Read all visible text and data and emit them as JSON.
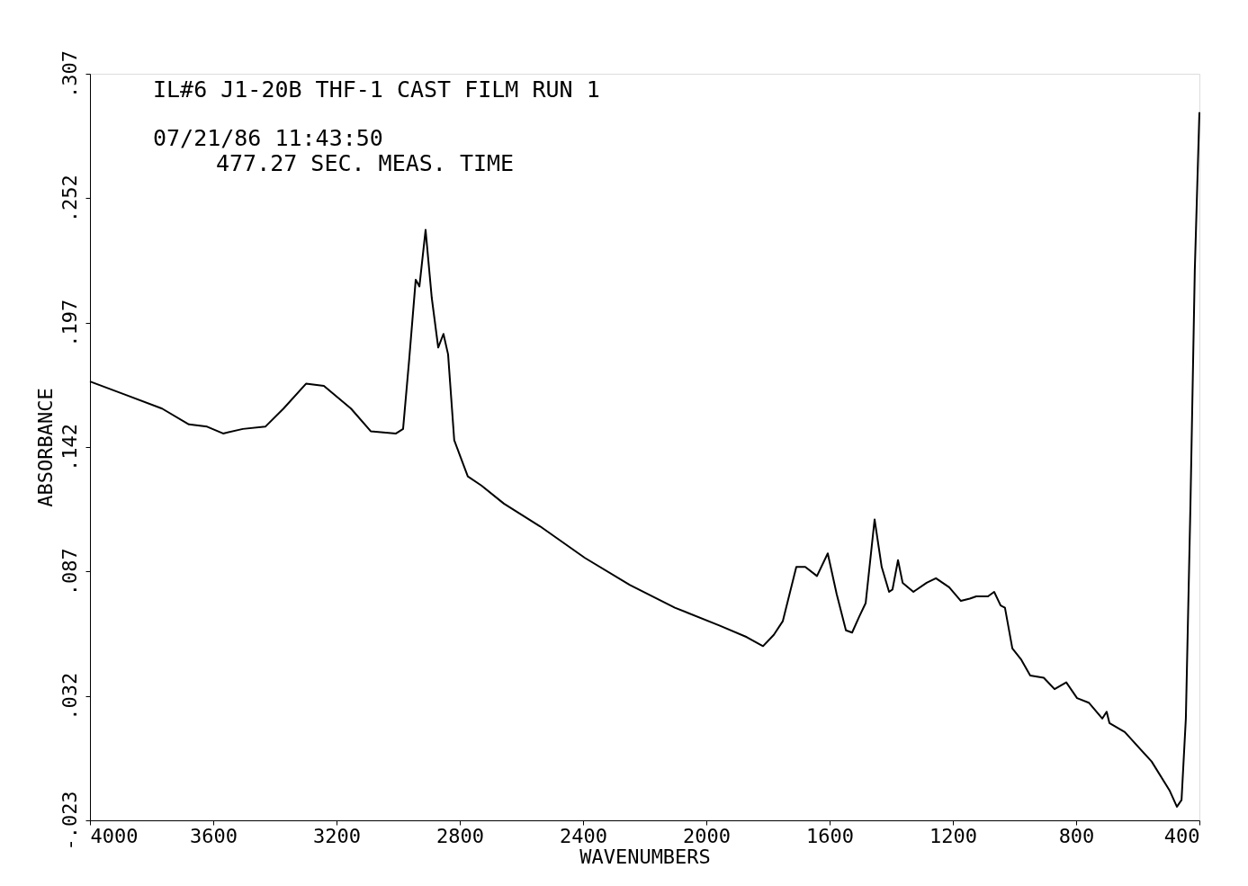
{
  "chart_data": {
    "type": "line",
    "title": "IL#6 J1-20B THF-1 CAST FILM RUN 1",
    "annotations": [
      "07/21/86 11:43:50",
      "477.27 SEC. MEAS. TIME"
    ],
    "xlabel": "WAVENUMBERS",
    "ylabel": "ABSORBANCE",
    "xlim": [
      4000,
      400
    ],
    "xticks": [
      4000,
      3600,
      3200,
      2800,
      2400,
      2000,
      1600,
      1200,
      800,
      400
    ],
    "ylim": [
      -0.023,
      0.307
    ],
    "yticks": [
      {
        "value": -0.023,
        "label": "-.023"
      },
      {
        "value": 0.032,
        "label": ".032"
      },
      {
        "value": 0.087,
        "label": ".087"
      },
      {
        "value": 0.142,
        "label": ".142"
      },
      {
        "value": 0.197,
        "label": ".197"
      },
      {
        "value": 0.252,
        "label": ".252"
      },
      {
        "value": 0.307,
        "label": ".307"
      }
    ],
    "grid": false,
    "marker": "none",
    "line_style": "solid",
    "series": [
      {
        "color": "#000000",
        "x": [
          4000,
          3883,
          3766,
          3679,
          3620,
          3568,
          3504,
          3431,
          3372,
          3299,
          3241,
          3153,
          3089,
          3007,
          2984,
          2964,
          2943,
          2931,
          2911,
          2891,
          2870,
          2853,
          2838,
          2818,
          2774,
          2730,
          2657,
          2540,
          2394,
          2248,
          2102,
          1956,
          1869,
          1816,
          1781,
          1752,
          1708,
          1679,
          1641,
          1606,
          1577,
          1547,
          1527,
          1504,
          1483,
          1454,
          1431,
          1407,
          1396,
          1378,
          1363,
          1328,
          1285,
          1255,
          1212,
          1174,
          1145,
          1124,
          1086,
          1066,
          1045,
          1031,
          1007,
          978,
          949,
          905,
          870,
          832,
          797,
          759,
          715,
          701,
          692,
          642,
          555,
          496,
          473,
          458,
          444,
          429,
          415,
          400
        ],
        "values": [
          0.171,
          0.165,
          0.159,
          0.152,
          0.151,
          0.148,
          0.15,
          0.151,
          0.159,
          0.17,
          0.169,
          0.159,
          0.149,
          0.148,
          0.15,
          0.181,
          0.216,
          0.213,
          0.238,
          0.208,
          0.186,
          0.192,
          0.183,
          0.145,
          0.129,
          0.125,
          0.117,
          0.107,
          0.093,
          0.081,
          0.071,
          0.063,
          0.058,
          0.054,
          0.059,
          0.065,
          0.089,
          0.089,
          0.085,
          0.095,
          0.077,
          0.061,
          0.06,
          0.067,
          0.073,
          0.11,
          0.089,
          0.078,
          0.079,
          0.092,
          0.082,
          0.078,
          0.082,
          0.084,
          0.08,
          0.074,
          0.075,
          0.076,
          0.076,
          0.078,
          0.072,
          0.071,
          0.053,
          0.048,
          0.041,
          0.04,
          0.035,
          0.038,
          0.031,
          0.029,
          0.022,
          0.025,
          0.02,
          0.016,
          0.003,
          -0.01,
          -0.017,
          -0.014,
          0.022,
          0.117,
          0.22,
          0.29
        ]
      }
    ]
  }
}
